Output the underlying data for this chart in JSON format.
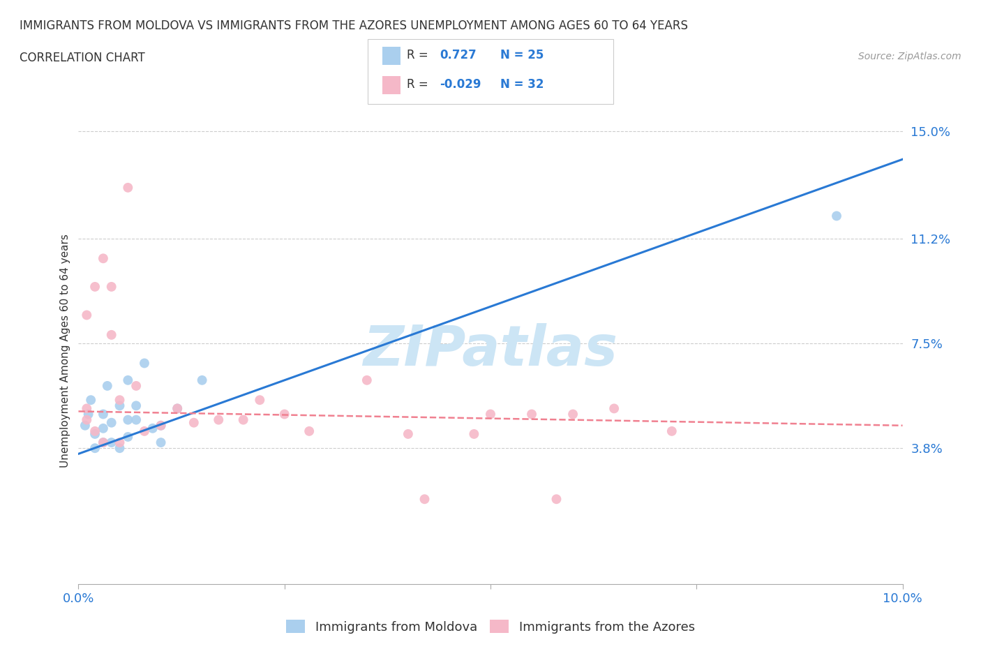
{
  "title_line1": "IMMIGRANTS FROM MOLDOVA VS IMMIGRANTS FROM THE AZORES UNEMPLOYMENT AMONG AGES 60 TO 64 YEARS",
  "title_line2": "CORRELATION CHART",
  "source_text": "Source: ZipAtlas.com",
  "ylabel": "Unemployment Among Ages 60 to 64 years",
  "xlim": [
    0.0,
    0.1
  ],
  "ylim": [
    -0.01,
    0.155
  ],
  "ytick_labels": [
    "3.8%",
    "7.5%",
    "11.2%",
    "15.0%"
  ],
  "ytick_values": [
    0.038,
    0.075,
    0.112,
    0.15
  ],
  "grid_color": "#cccccc",
  "background_color": "#ffffff",
  "watermark_text": "ZIPatlas",
  "watermark_color": "#cce5f5",
  "legend_label1": "Immigrants from Moldova",
  "legend_label2": "Immigrants from the Azores",
  "moldova_color": "#aacfee",
  "azores_color": "#f5b8c8",
  "moldova_line_color": "#2979d4",
  "azores_line_color": "#f08090",
  "moldova_x": [
    0.0008,
    0.0012,
    0.0015,
    0.002,
    0.002,
    0.003,
    0.003,
    0.003,
    0.0035,
    0.004,
    0.004,
    0.005,
    0.005,
    0.006,
    0.006,
    0.006,
    0.007,
    0.007,
    0.008,
    0.009,
    0.01,
    0.01,
    0.012,
    0.015,
    0.092
  ],
  "moldova_y": [
    0.046,
    0.05,
    0.055,
    0.038,
    0.043,
    0.04,
    0.045,
    0.05,
    0.06,
    0.04,
    0.047,
    0.038,
    0.053,
    0.042,
    0.048,
    0.062,
    0.048,
    0.053,
    0.068,
    0.045,
    0.04,
    0.046,
    0.052,
    0.062,
    0.12
  ],
  "azores_x": [
    0.001,
    0.001,
    0.001,
    0.002,
    0.002,
    0.003,
    0.003,
    0.004,
    0.004,
    0.005,
    0.005,
    0.006,
    0.007,
    0.008,
    0.01,
    0.012,
    0.014,
    0.017,
    0.02,
    0.022,
    0.025,
    0.028,
    0.035,
    0.04,
    0.042,
    0.048,
    0.05,
    0.055,
    0.058,
    0.06,
    0.065,
    0.072
  ],
  "azores_y": [
    0.048,
    0.052,
    0.085,
    0.044,
    0.095,
    0.04,
    0.105,
    0.078,
    0.095,
    0.04,
    0.055,
    0.13,
    0.06,
    0.044,
    0.046,
    0.052,
    0.047,
    0.048,
    0.048,
    0.055,
    0.05,
    0.044,
    0.062,
    0.043,
    0.02,
    0.043,
    0.05,
    0.05,
    0.02,
    0.05,
    0.052,
    0.044
  ],
  "moldova_trend_x": [
    0.0,
    0.1
  ],
  "moldova_trend_y": [
    0.036,
    0.14
  ],
  "azores_trend_x": [
    0.0,
    0.1
  ],
  "azores_trend_y": [
    0.051,
    0.046
  ]
}
